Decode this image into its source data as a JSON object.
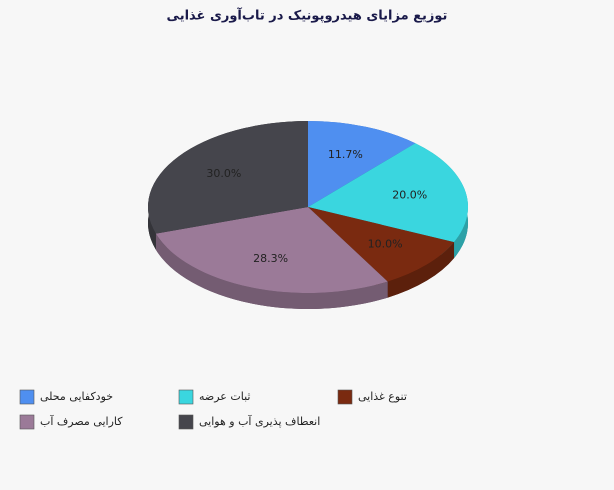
{
  "chart_data": {
    "type": "pie3d",
    "title": "توزیع مزایای هیدروپونیک در تاب‌آوری  غذایی",
    "categories": [
      "خودکفایی محلی",
      "ثبات عرضه",
      "تنوع غذایی",
      "کارایی مصرف آب",
      "انعطاف پذیری آب و هوایی"
    ],
    "values": [
      11.7,
      20.0,
      10.0,
      28.3,
      30.0
    ],
    "value_labels": [
      "11.7%",
      "20.0%",
      "10.0%",
      "28.3%",
      "30.0%"
    ],
    "colors": [
      "#4f8ff0",
      "#3ad6df",
      "#7a2a10",
      "#9b7a98",
      "#45454c"
    ]
  }
}
